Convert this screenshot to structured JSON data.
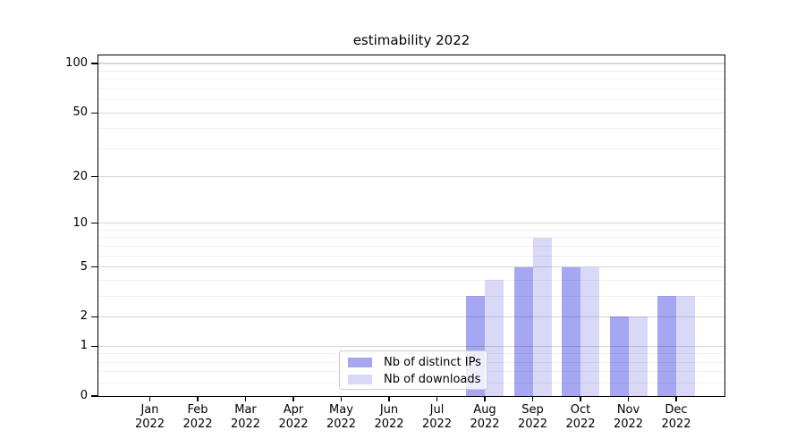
{
  "chart_data": {
    "type": "bar",
    "title": "estimability 2022",
    "months": [
      "Jan",
      "Feb",
      "Mar",
      "Apr",
      "May",
      "Jun",
      "Jul",
      "Aug",
      "Sep",
      "Oct",
      "Nov",
      "Dec"
    ],
    "year": "2022",
    "series": [
      {
        "name": "Nb of distinct IPs",
        "color": "#a6a6f2",
        "values": [
          0,
          0,
          0,
          0,
          0,
          0,
          0,
          3,
          5,
          5,
          2,
          3
        ]
      },
      {
        "name": "Nb of downloads",
        "color": "#d9d9f7",
        "values": [
          0,
          0,
          0,
          0,
          0,
          0,
          0,
          4,
          8,
          5,
          2,
          3
        ]
      }
    ],
    "yscale": "log1p",
    "ylim": [
      0,
      112
    ],
    "yticks": [
      0,
      1,
      2,
      5,
      10,
      20,
      50,
      100
    ],
    "yticks_minor": [
      0.2,
      0.4,
      0.6,
      0.8,
      3,
      4,
      6,
      7,
      8,
      9,
      30,
      40,
      60,
      70,
      80,
      90
    ],
    "grid": true,
    "legend_position": "lower center",
    "colors": {
      "axis": "#000000",
      "grid_major": "rgba(0,0,0,0.16)",
      "grid_minor": "rgba(0,0,0,0.06)",
      "background": "#ffffff"
    }
  }
}
